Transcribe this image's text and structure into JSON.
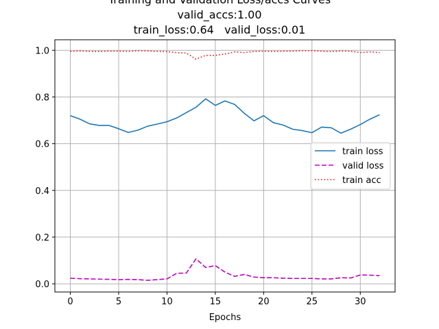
{
  "chart_data": {
    "type": "line",
    "title_lines": [
      "Training and Validation Loss/accs Curves",
      "valid_accs:1.00",
      "train_loss:0.64   valid_loss:0.01"
    ],
    "xlabel": "Epochs",
    "ylabel": "",
    "xlim": [
      -1.6,
      33.6
    ],
    "ylim": [
      -0.035,
      1.045
    ],
    "xticks": [
      0,
      5,
      10,
      15,
      20,
      25,
      30
    ],
    "yticks": [
      0.0,
      0.2,
      0.4,
      0.6,
      0.8,
      1.0
    ],
    "ytick_labels": [
      "0.0",
      "0.2",
      "0.4",
      "0.6",
      "0.8",
      "1.0"
    ],
    "grid": true,
    "legend_placement": "center-right",
    "x": [
      0,
      1,
      2,
      3,
      4,
      5,
      6,
      7,
      8,
      9,
      10,
      11,
      12,
      13,
      14,
      15,
      16,
      17,
      18,
      19,
      20,
      21,
      22,
      23,
      24,
      25,
      26,
      27,
      28,
      29,
      30,
      31,
      32
    ],
    "series": [
      {
        "name": "train loss",
        "color": "#1f77b4",
        "style": "solid",
        "values": [
          0.72,
          0.705,
          0.685,
          0.678,
          0.678,
          0.664,
          0.648,
          0.658,
          0.675,
          0.684,
          0.694,
          0.71,
          0.733,
          0.756,
          0.792,
          0.764,
          0.783,
          0.768,
          0.73,
          0.698,
          0.72,
          0.69,
          0.68,
          0.662,
          0.656,
          0.647,
          0.671,
          0.668,
          0.645,
          0.662,
          0.682,
          0.705,
          0.724
        ]
      },
      {
        "name": "valid loss",
        "color": "#bf00bf",
        "style": "dashed",
        "values": [
          0.024,
          0.022,
          0.021,
          0.02,
          0.019,
          0.018,
          0.019,
          0.018,
          0.015,
          0.018,
          0.021,
          0.045,
          0.046,
          0.107,
          0.07,
          0.078,
          0.05,
          0.032,
          0.04,
          0.029,
          0.026,
          0.026,
          0.024,
          0.023,
          0.023,
          0.023,
          0.021,
          0.021,
          0.026,
          0.025,
          0.038,
          0.037,
          0.035
        ]
      },
      {
        "name": "train acc",
        "color": "#ff0000",
        "style": "dotted",
        "values": [
          0.995,
          0.997,
          0.995,
          0.995,
          0.996,
          0.996,
          0.995,
          0.998,
          0.997,
          0.995,
          0.994,
          0.99,
          0.988,
          0.962,
          0.978,
          0.978,
          0.984,
          0.993,
          0.99,
          0.995,
          0.996,
          0.995,
          0.996,
          0.996,
          0.998,
          0.998,
          0.996,
          0.994,
          0.997,
          0.996,
          0.99,
          0.993,
          0.99
        ]
      }
    ]
  }
}
